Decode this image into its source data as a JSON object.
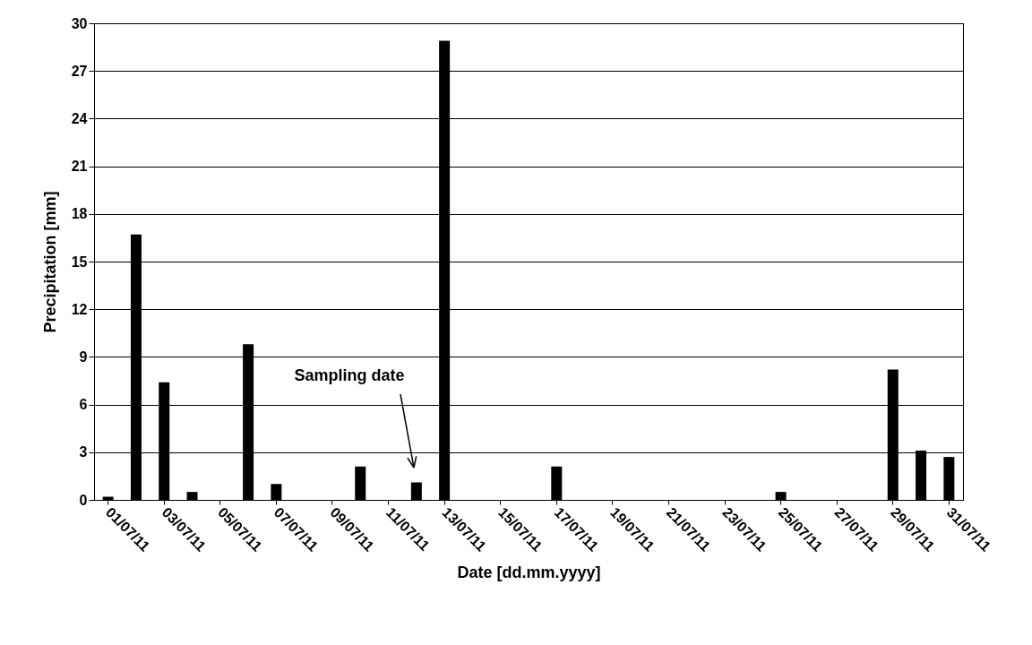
{
  "chart_data": {
    "type": "bar",
    "xlabel": "Date [dd.mm.yyyy]",
    "ylabel": "Precipitation [mm]",
    "categories": [
      "01/07/11",
      null,
      "03/07/11",
      null,
      "05/07/11",
      null,
      "07/07/11",
      null,
      "09/07/11",
      null,
      "11/07/11",
      null,
      "13/07/11",
      null,
      "15/07/11",
      null,
      "17/07/11",
      null,
      "19/07/11",
      null,
      "21/07/11",
      null,
      "23/07/11",
      null,
      "25/07/11",
      null,
      "27/07/11",
      null,
      "29/07/11",
      null,
      "31/07/11"
    ],
    "values": [
      0.2,
      16.7,
      7.4,
      0.5,
      0,
      9.8,
      1.0,
      0,
      0,
      2.1,
      0,
      1.1,
      28.9,
      0,
      0,
      0,
      2.1,
      0,
      0,
      0,
      0,
      0,
      0,
      0,
      0.5,
      0,
      0,
      0,
      8.2,
      3.1,
      2.7
    ],
    "color": "#000000",
    "ylim": [
      0,
      30
    ],
    "yticks": [
      0,
      3,
      6,
      9,
      12,
      15,
      18,
      21,
      24,
      27,
      30
    ],
    "grid": "y",
    "annotations": [
      "Sampling date"
    ]
  }
}
